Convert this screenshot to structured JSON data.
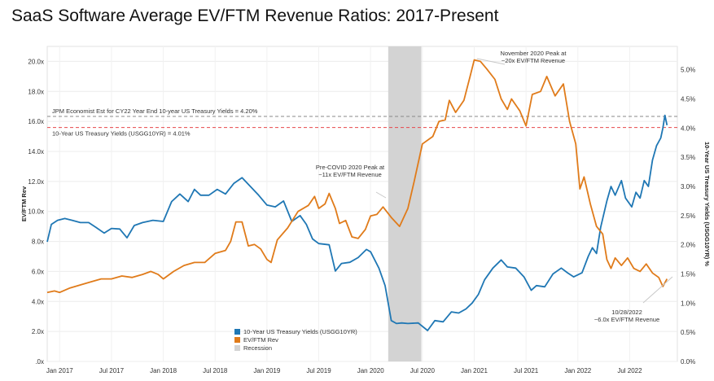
{
  "chart_data": {
    "type": "line",
    "title": "SaaS Software Average EV/FTM  Revenue Ratios: 2017-Present",
    "ylabel": "EV/FTM Rev",
    "y2label": "10-Year US Treasury Yields (USGG10YR) %",
    "ylim": [
      0,
      21
    ],
    "y2lim": [
      0,
      5.4
    ],
    "xlim": [
      2016.88,
      2022.96
    ],
    "grid": true,
    "legend_position": "bottom-center",
    "y_ticks": [
      {
        "v": 0,
        "label": ".0x"
      },
      {
        "v": 2,
        "label": "2.0x"
      },
      {
        "v": 4,
        "label": "4.0x"
      },
      {
        "v": 6,
        "label": "6.0x"
      },
      {
        "v": 8,
        "label": "8.0x"
      },
      {
        "v": 10,
        "label": "10.0x"
      },
      {
        "v": 12,
        "label": "12.0x"
      },
      {
        "v": 14,
        "label": "14.0x"
      },
      {
        "v": 16,
        "label": "16.0x"
      },
      {
        "v": 18,
        "label": "18.0x"
      },
      {
        "v": 20,
        "label": "20.0x"
      }
    ],
    "y2_ticks": [
      {
        "v": 0,
        "label": "0.0%"
      },
      {
        "v": 0.5,
        "label": "0.5%"
      },
      {
        "v": 1.0,
        "label": "1.0%"
      },
      {
        "v": 1.5,
        "label": "1.5%"
      },
      {
        "v": 2.0,
        "label": "2.0%"
      },
      {
        "v": 2.5,
        "label": "2.5%"
      },
      {
        "v": 3.0,
        "label": "3.0%"
      },
      {
        "v": 3.5,
        "label": "3.5%"
      },
      {
        "v": 4.0,
        "label": "4.0%"
      },
      {
        "v": 4.5,
        "label": "4.5%"
      },
      {
        "v": 5.0,
        "label": "5.0%"
      }
    ],
    "x_ticks": [
      {
        "v": 2017.0,
        "label": "Jan 2017"
      },
      {
        "v": 2017.5,
        "label": "Jul 2017"
      },
      {
        "v": 2018.0,
        "label": "Jan 2018"
      },
      {
        "v": 2018.5,
        "label": "Jul 2018"
      },
      {
        "v": 2019.0,
        "label": "Jan 2019"
      },
      {
        "v": 2019.5,
        "label": "Jul 2019"
      },
      {
        "v": 2020.0,
        "label": "Jan 2020"
      },
      {
        "v": 2020.5,
        "label": "Jul 2020"
      },
      {
        "v": 2021.0,
        "label": "Jan 2021"
      },
      {
        "v": 2021.5,
        "label": "Jul 2021"
      },
      {
        "v": 2022.0,
        "label": "Jan 2022"
      },
      {
        "v": 2022.5,
        "label": "Jul 2022"
      }
    ],
    "recession": {
      "label": "Recession",
      "start": 2020.17,
      "end": 2020.49,
      "color": "#d3d3d3"
    },
    "reference_lines": [
      {
        "label": "JPM Economist Est for CY22 Year End 10-year US Treasury Yields = 4.20%",
        "yield": 4.2,
        "color": "#8a8a8a"
      },
      {
        "label": "10-Year US Treasury Yields (USGG10YR) = 4.01%",
        "yield": 4.01,
        "color": "#e8474b"
      }
    ],
    "series": [
      {
        "name": "10-Year US Treasury Yields (USGG10YR)",
        "axis": "right",
        "color": "#1f77b4",
        "points": [
          [
            2016.88,
            2.05
          ],
          [
            2016.92,
            2.35
          ],
          [
            2016.98,
            2.42
          ],
          [
            2017.05,
            2.45
          ],
          [
            2017.12,
            2.42
          ],
          [
            2017.2,
            2.38
          ],
          [
            2017.28,
            2.38
          ],
          [
            2017.35,
            2.3
          ],
          [
            2017.43,
            2.2
          ],
          [
            2017.5,
            2.28
          ],
          [
            2017.58,
            2.27
          ],
          [
            2017.65,
            2.12
          ],
          [
            2017.72,
            2.33
          ],
          [
            2017.8,
            2.38
          ],
          [
            2017.9,
            2.42
          ],
          [
            2018.0,
            2.4
          ],
          [
            2018.08,
            2.74
          ],
          [
            2018.16,
            2.87
          ],
          [
            2018.24,
            2.74
          ],
          [
            2018.3,
            2.95
          ],
          [
            2018.36,
            2.85
          ],
          [
            2018.44,
            2.85
          ],
          [
            2018.52,
            2.95
          ],
          [
            2018.6,
            2.87
          ],
          [
            2018.68,
            3.05
          ],
          [
            2018.76,
            3.15
          ],
          [
            2018.84,
            3.0
          ],
          [
            2018.92,
            2.85
          ],
          [
            2019.0,
            2.68
          ],
          [
            2019.08,
            2.65
          ],
          [
            2019.16,
            2.75
          ],
          [
            2019.24,
            2.4
          ],
          [
            2019.32,
            2.5
          ],
          [
            2019.38,
            2.35
          ],
          [
            2019.44,
            2.1
          ],
          [
            2019.5,
            2.02
          ],
          [
            2019.6,
            2.0
          ],
          [
            2019.66,
            1.55
          ],
          [
            2019.72,
            1.68
          ],
          [
            2019.8,
            1.7
          ],
          [
            2019.88,
            1.78
          ],
          [
            2019.96,
            1.92
          ],
          [
            2020.0,
            1.88
          ],
          [
            2020.08,
            1.6
          ],
          [
            2020.14,
            1.3
          ],
          [
            2020.2,
            0.7
          ],
          [
            2020.25,
            0.65
          ],
          [
            2020.3,
            0.66
          ],
          [
            2020.36,
            0.65
          ],
          [
            2020.46,
            0.66
          ],
          [
            2020.55,
            0.53
          ],
          [
            2020.62,
            0.7
          ],
          [
            2020.7,
            0.68
          ],
          [
            2020.78,
            0.85
          ],
          [
            2020.85,
            0.83
          ],
          [
            2020.92,
            0.9
          ],
          [
            2020.98,
            1.0
          ],
          [
            2021.04,
            1.15
          ],
          [
            2021.1,
            1.4
          ],
          [
            2021.18,
            1.6
          ],
          [
            2021.26,
            1.74
          ],
          [
            2021.32,
            1.62
          ],
          [
            2021.4,
            1.6
          ],
          [
            2021.48,
            1.45
          ],
          [
            2021.55,
            1.22
          ],
          [
            2021.6,
            1.3
          ],
          [
            2021.68,
            1.28
          ],
          [
            2021.76,
            1.5
          ],
          [
            2021.84,
            1.6
          ],
          [
            2021.9,
            1.52
          ],
          [
            2021.96,
            1.45
          ],
          [
            2022.04,
            1.52
          ],
          [
            2022.1,
            1.8
          ],
          [
            2022.14,
            1.95
          ],
          [
            2022.18,
            1.85
          ],
          [
            2022.22,
            2.3
          ],
          [
            2022.28,
            2.75
          ],
          [
            2022.32,
            3.0
          ],
          [
            2022.36,
            2.85
          ],
          [
            2022.42,
            3.1
          ],
          [
            2022.46,
            2.8
          ],
          [
            2022.52,
            2.65
          ],
          [
            2022.56,
            2.9
          ],
          [
            2022.6,
            2.8
          ],
          [
            2022.64,
            3.1
          ],
          [
            2022.68,
            3.0
          ],
          [
            2022.72,
            3.45
          ],
          [
            2022.76,
            3.7
          ],
          [
            2022.8,
            3.83
          ],
          [
            2022.82,
            4.0
          ],
          [
            2022.84,
            4.22
          ],
          [
            2022.86,
            4.05
          ]
        ]
      },
      {
        "name": "EV/FTM Rev",
        "axis": "left",
        "color": "#e07b1a",
        "points": [
          [
            2016.88,
            4.6
          ],
          [
            2016.95,
            4.7
          ],
          [
            2017.0,
            4.6
          ],
          [
            2017.1,
            4.9
          ],
          [
            2017.2,
            5.1
          ],
          [
            2017.3,
            5.3
          ],
          [
            2017.4,
            5.5
          ],
          [
            2017.5,
            5.5
          ],
          [
            2017.6,
            5.7
          ],
          [
            2017.7,
            5.6
          ],
          [
            2017.8,
            5.8
          ],
          [
            2017.88,
            6.0
          ],
          [
            2017.95,
            5.8
          ],
          [
            2018.0,
            5.5
          ],
          [
            2018.1,
            6.0
          ],
          [
            2018.2,
            6.4
          ],
          [
            2018.3,
            6.6
          ],
          [
            2018.4,
            6.6
          ],
          [
            2018.5,
            7.2
          ],
          [
            2018.6,
            7.4
          ],
          [
            2018.65,
            8.0
          ],
          [
            2018.7,
            9.3
          ],
          [
            2018.76,
            9.3
          ],
          [
            2018.82,
            7.7
          ],
          [
            2018.88,
            7.8
          ],
          [
            2018.94,
            7.5
          ],
          [
            2019.0,
            6.8
          ],
          [
            2019.04,
            6.6
          ],
          [
            2019.1,
            8.1
          ],
          [
            2019.2,
            8.9
          ],
          [
            2019.3,
            10.0
          ],
          [
            2019.4,
            10.4
          ],
          [
            2019.46,
            11.0
          ],
          [
            2019.5,
            10.2
          ],
          [
            2019.56,
            10.5
          ],
          [
            2019.6,
            11.2
          ],
          [
            2019.66,
            10.2
          ],
          [
            2019.7,
            9.2
          ],
          [
            2019.76,
            9.4
          ],
          [
            2019.82,
            8.3
          ],
          [
            2019.88,
            8.2
          ],
          [
            2019.95,
            8.8
          ],
          [
            2020.0,
            9.7
          ],
          [
            2020.06,
            9.8
          ],
          [
            2020.12,
            10.3
          ],
          [
            2020.2,
            9.6
          ],
          [
            2020.28,
            9.0
          ],
          [
            2020.36,
            10.2
          ],
          [
            2020.42,
            12.0
          ],
          [
            2020.5,
            14.5
          ],
          [
            2020.6,
            15.0
          ],
          [
            2020.66,
            16.0
          ],
          [
            2020.72,
            16.1
          ],
          [
            2020.76,
            17.4
          ],
          [
            2020.82,
            16.6
          ],
          [
            2020.9,
            17.4
          ],
          [
            2020.96,
            19.0
          ],
          [
            2021.0,
            20.1
          ],
          [
            2021.06,
            20.0
          ],
          [
            2021.12,
            19.5
          ],
          [
            2021.2,
            18.8
          ],
          [
            2021.26,
            17.5
          ],
          [
            2021.32,
            16.8
          ],
          [
            2021.36,
            17.5
          ],
          [
            2021.44,
            16.7
          ],
          [
            2021.5,
            15.7
          ],
          [
            2021.56,
            17.8
          ],
          [
            2021.64,
            18.0
          ],
          [
            2021.7,
            19.0
          ],
          [
            2021.78,
            17.7
          ],
          [
            2021.86,
            18.5
          ],
          [
            2021.92,
            16.0
          ],
          [
            2021.98,
            14.5
          ],
          [
            2022.02,
            11.5
          ],
          [
            2022.06,
            12.3
          ],
          [
            2022.12,
            10.5
          ],
          [
            2022.18,
            9.0
          ],
          [
            2022.24,
            8.5
          ],
          [
            2022.28,
            6.8
          ],
          [
            2022.32,
            6.2
          ],
          [
            2022.36,
            6.9
          ],
          [
            2022.42,
            6.4
          ],
          [
            2022.48,
            6.9
          ],
          [
            2022.54,
            6.2
          ],
          [
            2022.6,
            6.0
          ],
          [
            2022.66,
            6.5
          ],
          [
            2022.72,
            5.9
          ],
          [
            2022.78,
            5.6
          ],
          [
            2022.82,
            5.0
          ],
          [
            2022.86,
            5.5
          ]
        ]
      }
    ],
    "annotations": [
      {
        "lines": [
          "November 2020 Peak at",
          "~20x EV/FTM Revenue"
        ]
      },
      {
        "lines": [
          "Pre-COVID 2020 Peak at",
          "~11x EV/FTM Revenue"
        ]
      },
      {
        "lines": [
          "10/28/2022",
          "~6.0x EV/FTM Revenue"
        ]
      }
    ]
  }
}
